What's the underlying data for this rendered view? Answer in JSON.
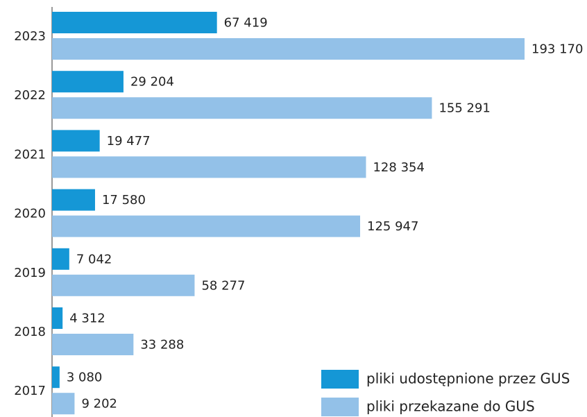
{
  "chart_data": {
    "type": "bar",
    "orientation": "horizontal",
    "categories": [
      "2023",
      "2022",
      "2021",
      "2020",
      "2019",
      "2018",
      "2017"
    ],
    "series": [
      {
        "name": "pliki udostępnione przez GUS",
        "color": "#1597d6",
        "values": [
          67419,
          29204,
          19477,
          17580,
          7042,
          4312,
          3080
        ],
        "value_labels": [
          "67 419",
          "29 204",
          "19 477",
          "17 580",
          "7 042",
          "4 312",
          "3 080"
        ]
      },
      {
        "name": "pliki przekazane do GUS",
        "color": "#93c1e8",
        "values": [
          193170,
          155291,
          128354,
          125947,
          58277,
          33288,
          9202
        ],
        "value_labels": [
          "193 170",
          "155 291",
          "128 354",
          "125 947",
          "58 277",
          "33 288",
          "9 202"
        ]
      }
    ],
    "legend": "lower right"
  }
}
